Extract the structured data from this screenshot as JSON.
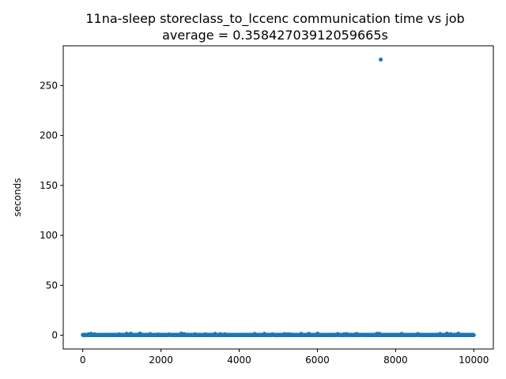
{
  "chart_data": {
    "type": "scatter",
    "title_lines": [
      "11na-sleep storeclass_to_lccenc communication time vs job",
      "average = 0.35842703912059665s"
    ],
    "xlabel": "",
    "ylabel": "seconds",
    "xlim": [
      -500,
      10500
    ],
    "ylim": [
      -13.8,
      289.8
    ],
    "x_ticks": [
      0,
      2000,
      4000,
      6000,
      8000,
      10000
    ],
    "x_tick_labels": [
      "0",
      "2000",
      "4000",
      "6000",
      "8000",
      "10000"
    ],
    "y_ticks": [
      0,
      50,
      100,
      150,
      200,
      250
    ],
    "y_tick_labels": [
      "0",
      "50",
      "100",
      "150",
      "200",
      "250"
    ],
    "grid": false,
    "legend": "none",
    "marker_color": "#1f77b4",
    "x_range": [
      0,
      10000
    ],
    "baseline_value": 0.36,
    "outliers": [
      {
        "x": 7620,
        "y": 276
      }
    ]
  }
}
